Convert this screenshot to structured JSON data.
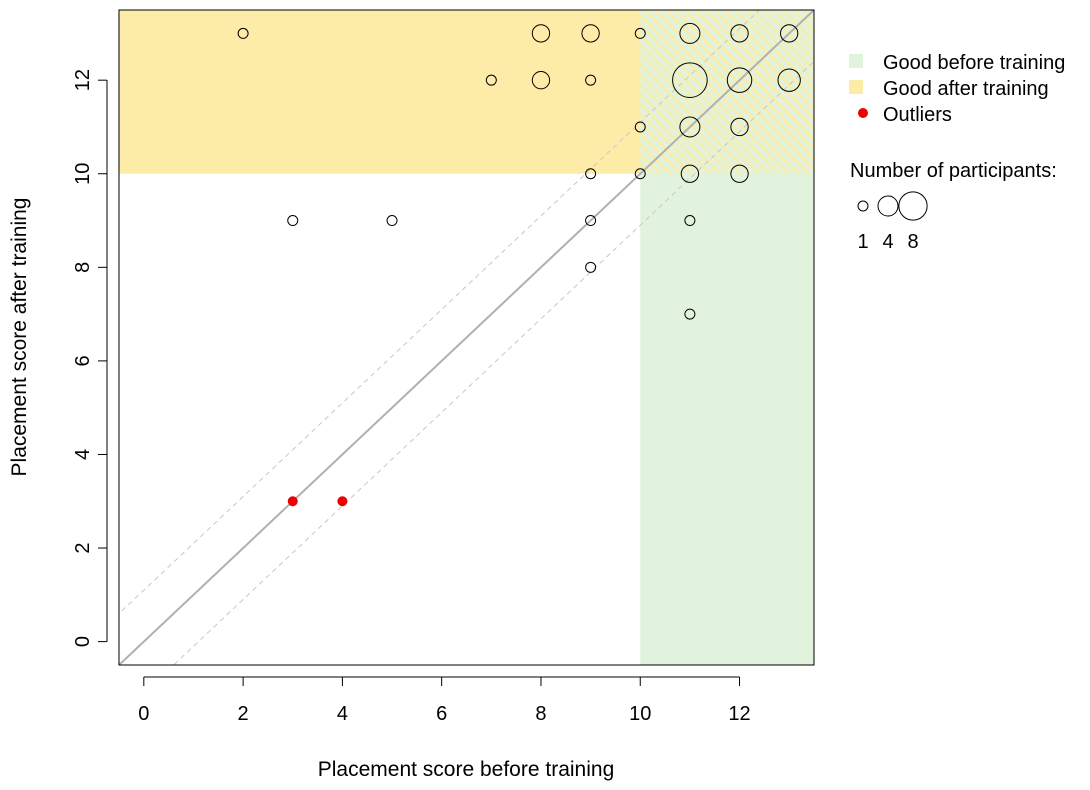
{
  "chart_data": {
    "type": "scatter",
    "xlabel": "Placement score before training",
    "ylabel": "Placement score after training",
    "xlim": [
      -0.5,
      13.5
    ],
    "ylim": [
      -0.5,
      13.5
    ],
    "x_ticks": [
      0,
      2,
      4,
      6,
      8,
      10,
      12
    ],
    "y_ticks": [
      0,
      2,
      4,
      6,
      8,
      10,
      12
    ],
    "regions": [
      {
        "name": "Good before training",
        "x": [
          10,
          13.5
        ],
        "y": [
          -0.5,
          13.5
        ],
        "color": "#e2f3dd"
      },
      {
        "name": "Good after training",
        "x": [
          -0.5,
          13.5
        ],
        "y": [
          10,
          13.5
        ],
        "color": "#fdeca8"
      }
    ],
    "reference_lines": {
      "identity": {
        "slope": 1,
        "intercept": 0,
        "color": "#b0b0b0"
      },
      "bands": [
        {
          "slope": 1,
          "intercept": 1.1
        },
        {
          "slope": 1,
          "intercept": -1.1
        }
      ]
    },
    "points": [
      {
        "x": 2,
        "y": 13,
        "n": 1
      },
      {
        "x": 8,
        "y": 13,
        "n": 3
      },
      {
        "x": 9,
        "y": 13,
        "n": 3
      },
      {
        "x": 10,
        "y": 13,
        "n": 1
      },
      {
        "x": 11,
        "y": 13,
        "n": 4
      },
      {
        "x": 12,
        "y": 13,
        "n": 3
      },
      {
        "x": 13,
        "y": 13,
        "n": 3
      },
      {
        "x": 7,
        "y": 12,
        "n": 1
      },
      {
        "x": 8,
        "y": 12,
        "n": 3
      },
      {
        "x": 9,
        "y": 12,
        "n": 1
      },
      {
        "x": 11,
        "y": 12,
        "n": 12
      },
      {
        "x": 12,
        "y": 12,
        "n": 6
      },
      {
        "x": 13,
        "y": 12,
        "n": 5
      },
      {
        "x": 10,
        "y": 11,
        "n": 1
      },
      {
        "x": 11,
        "y": 11,
        "n": 4
      },
      {
        "x": 12,
        "y": 11,
        "n": 3
      },
      {
        "x": 9,
        "y": 10,
        "n": 1
      },
      {
        "x": 10,
        "y": 10,
        "n": 1
      },
      {
        "x": 11,
        "y": 10,
        "n": 3
      },
      {
        "x": 12,
        "y": 10,
        "n": 3
      },
      {
        "x": 3,
        "y": 9,
        "n": 1
      },
      {
        "x": 5,
        "y": 9,
        "n": 1
      },
      {
        "x": 9,
        "y": 9,
        "n": 1
      },
      {
        "x": 11,
        "y": 9,
        "n": 1
      },
      {
        "x": 9,
        "y": 8,
        "n": 1
      },
      {
        "x": 11,
        "y": 7,
        "n": 1
      }
    ],
    "outliers": [
      {
        "x": 3,
        "y": 3
      },
      {
        "x": 4,
        "y": 3
      }
    ],
    "outlier_color": "#ee0000",
    "legend": {
      "placement": "right",
      "entries": [
        {
          "label": "Good before training",
          "kind": "square",
          "color": "#e2f3dd"
        },
        {
          "label": "Good after training",
          "kind": "square",
          "color": "#fdeca8"
        },
        {
          "label": "Outliers",
          "kind": "dot",
          "color": "#ee0000"
        }
      ],
      "size_title": "Number of participants:",
      "size_keys": [
        1,
        4,
        8
      ]
    }
  }
}
